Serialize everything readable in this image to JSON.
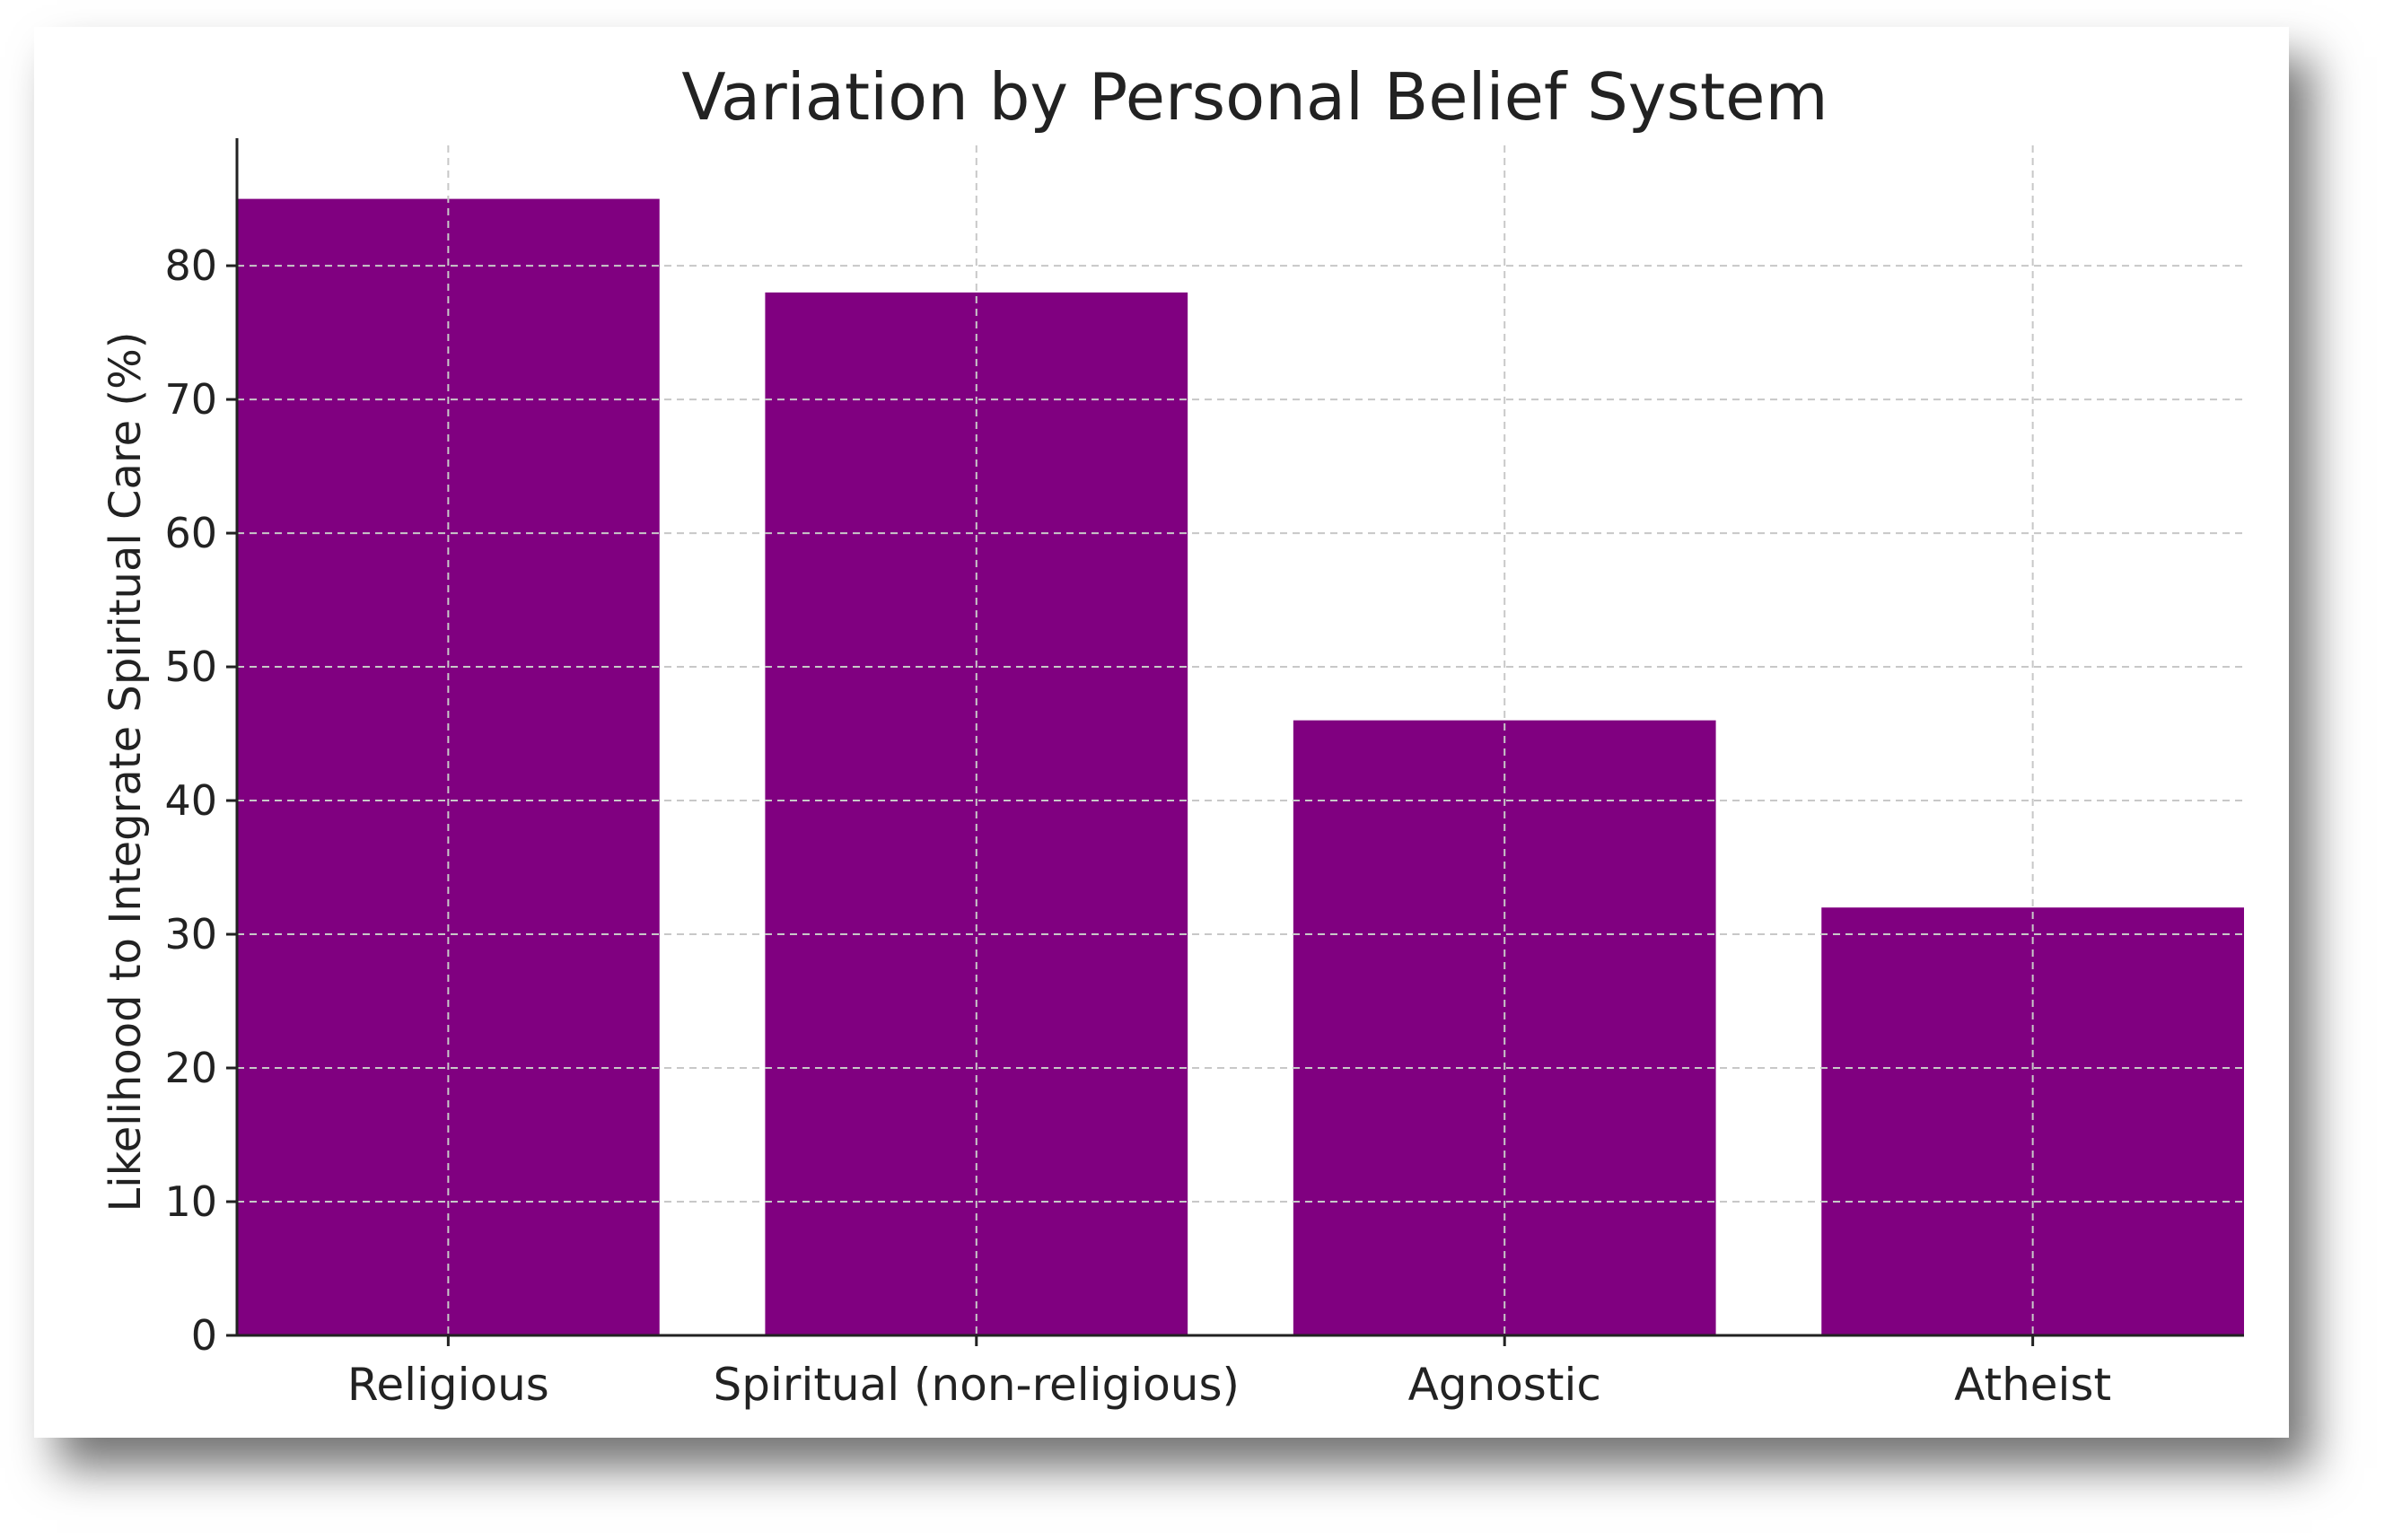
{
  "chart_data": {
    "type": "bar",
    "title": "Variation by Personal Belief System",
    "xlabel": "",
    "ylabel": "Likelihood to Integrate Spiritual Care (%)",
    "categories": [
      "Religious",
      "Spiritual (non-religious)",
      "Agnostic",
      "Atheist"
    ],
    "values": [
      85,
      78,
      46,
      32
    ],
    "ylim": [
      0,
      89
    ],
    "yticks": [
      0,
      10,
      20,
      30,
      40,
      50,
      60,
      70,
      80
    ],
    "grid": true,
    "bar_color": "#800080",
    "legend": "none"
  }
}
